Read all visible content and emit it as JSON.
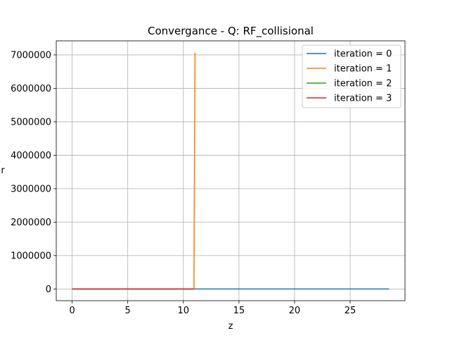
{
  "chart_data": {
    "type": "line",
    "title": "Convergance  - Q: RF_collisional",
    "xlabel": "z",
    "ylabel": "r",
    "xlim": [
      -1.43,
      29.93
    ],
    "ylim": [
      -350000,
      7420000
    ],
    "xticks": [
      0,
      5,
      10,
      15,
      20,
      25
    ],
    "yticks": [
      0,
      1000000,
      2000000,
      3000000,
      4000000,
      5000000,
      6000000,
      7000000
    ],
    "grid": true,
    "legend": "top-right",
    "series": [
      {
        "name": "iteration = 0",
        "color": "#1f77b4",
        "x": [
          0,
          11.0,
          28.5
        ],
        "y": [
          0,
          0,
          0
        ]
      },
      {
        "name": "iteration = 1",
        "color": "#ff7f0e",
        "x": [
          0,
          10.95,
          11.05,
          11.1
        ],
        "y": [
          0,
          0,
          7050000,
          7050000
        ]
      },
      {
        "name": "iteration = 2",
        "color": "#2ca02c",
        "x": [
          0,
          10.95
        ],
        "y": [
          0,
          0
        ]
      },
      {
        "name": "iteration = 3",
        "color": "#d62728",
        "x": [
          0,
          10.95
        ],
        "y": [
          0,
          0
        ]
      }
    ]
  }
}
